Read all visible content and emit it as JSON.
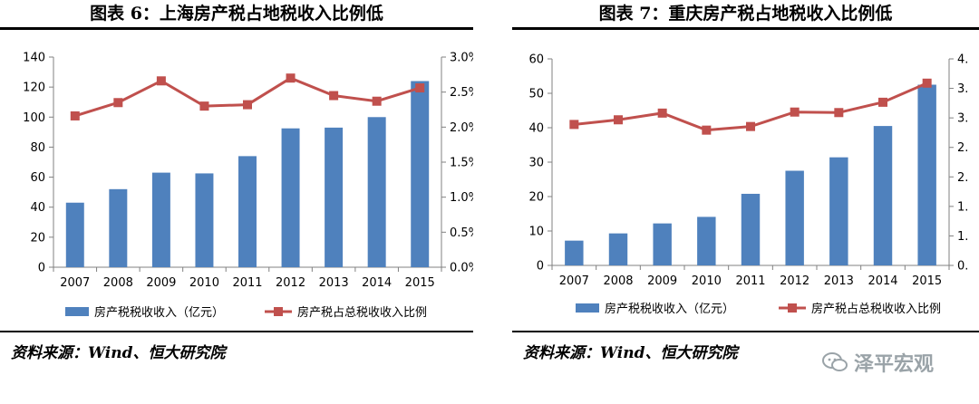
{
  "left": {
    "title": "图表 6：上海房产税占地税收入比例低",
    "source": "资料来源：Wind、恒大研究院"
  },
  "right": {
    "title": "图表 7：重庆房产税占地税收入比例低",
    "source": "资料来源：Wind、恒大研究院"
  },
  "watermark": "泽平宏观",
  "colors": {
    "bar": "#4f81bd",
    "line": "#c0504d"
  },
  "chart_data": [
    {
      "type": "bar",
      "title": "图表 6：上海房产税占地税收入比例低",
      "categories": [
        "2007",
        "2008",
        "2009",
        "2010",
        "2011",
        "2012",
        "2013",
        "2014",
        "2015"
      ],
      "series": [
        {
          "name": "房产税税收收入（亿元）",
          "type": "bar",
          "axis": "left",
          "values": [
            43,
            52,
            63,
            62.5,
            74,
            92.5,
            93,
            100,
            124
          ]
        },
        {
          "name": "房产税占总税收收入比例",
          "type": "line",
          "axis": "right",
          "values": [
            0.0216,
            0.0235,
            0.0266,
            0.023,
            0.0232,
            0.027,
            0.0245,
            0.0237,
            0.0256
          ]
        }
      ],
      "y_left": {
        "min": 0,
        "max": 140,
        "ticks": [
          "0",
          "20",
          "40",
          "60",
          "80",
          "100",
          "120",
          "140"
        ]
      },
      "y_right": {
        "min": 0,
        "max": 0.03,
        "ticks": [
          "0.0%",
          "0.5%",
          "1.0%",
          "1.5%",
          "2.0%",
          "2.5%",
          "3.0%"
        ]
      },
      "legend": "bottom",
      "grid": false
    },
    {
      "type": "bar",
      "title": "图表 7：重庆房产税占地税收入比例低",
      "categories": [
        "2007",
        "2008",
        "2009",
        "2010",
        "2011",
        "2012",
        "2013",
        "2014",
        "2015"
      ],
      "series": [
        {
          "name": "房产税税收收入（亿元）",
          "type": "bar",
          "axis": "left",
          "values": [
            7.2,
            9.3,
            12.2,
            14.1,
            20.8,
            27.5,
            31.4,
            40.5,
            52.5
          ]
        },
        {
          "name": "房产税占总税收收入比例",
          "type": "line",
          "axis": "right",
          "values": [
            0.0273,
            0.0282,
            0.0295,
            0.0262,
            0.0269,
            0.0297,
            0.0296,
            0.0316,
            0.0353
          ]
        }
      ],
      "y_left": {
        "min": 0,
        "max": 60,
        "ticks": [
          "0",
          "10",
          "20",
          "30",
          "40",
          "50",
          "60"
        ]
      },
      "y_right": {
        "min": 0,
        "max": 0.04,
        "ticks": [
          "0.",
          "1.",
          "1.",
          "2.",
          "2.",
          "3.",
          "3.",
          "4."
        ]
      },
      "legend": "bottom",
      "grid": false
    }
  ]
}
